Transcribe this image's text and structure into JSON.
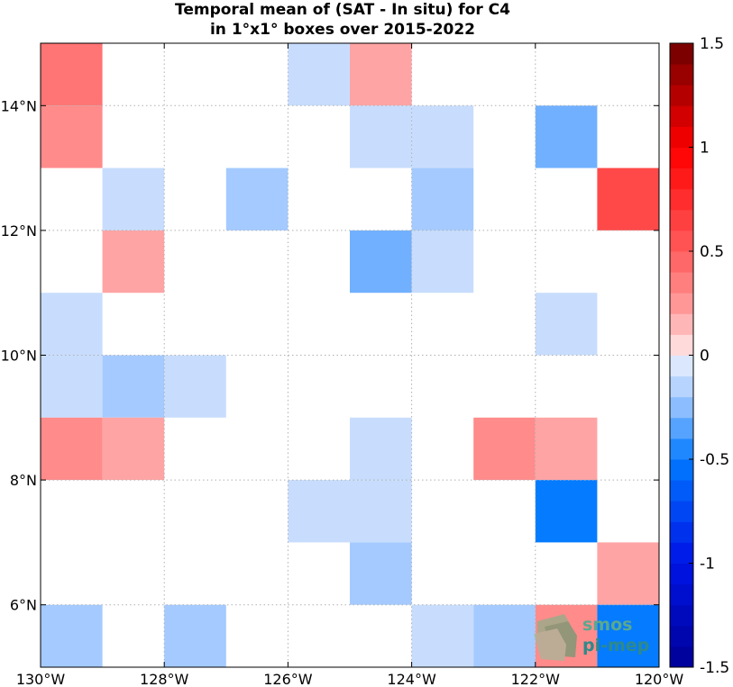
{
  "chart_data": {
    "type": "heatmap",
    "title": "Temporal mean of (SAT - In situ) for C4",
    "subtitle": "in 1°x1° boxes over 2015-2022",
    "xlim": [
      -130,
      -120
    ],
    "ylim": [
      5,
      15
    ],
    "x_ticks": [
      {
        "value": -130,
        "label": "130°W"
      },
      {
        "value": -128,
        "label": "128°W"
      },
      {
        "value": -126,
        "label": "126°W"
      },
      {
        "value": -124,
        "label": "124°W"
      },
      {
        "value": -122,
        "label": "122°W"
      },
      {
        "value": -120,
        "label": "120°W"
      }
    ],
    "y_ticks": [
      {
        "value": 6,
        "label": "6°N"
      },
      {
        "value": 8,
        "label": "8°N"
      },
      {
        "value": 10,
        "label": "10°N"
      },
      {
        "value": 12,
        "label": "12°N"
      },
      {
        "value": 14,
        "label": "14°N"
      }
    ],
    "grid": true,
    "grid_style": "dotted",
    "colorbar": {
      "range": [
        -1.5,
        1.5
      ],
      "step": 0.1,
      "ticks": [
        {
          "value": 1.5,
          "label": "1.5"
        },
        {
          "value": 1,
          "label": "1"
        },
        {
          "value": 0.5,
          "label": "0.5"
        },
        {
          "value": 0,
          "label": "0"
        },
        {
          "value": -0.5,
          "label": "-0.5"
        },
        {
          "value": -1,
          "label": "-1"
        },
        {
          "value": -1.5,
          "label": "-1.5"
        }
      ],
      "colormap": "blue-white-red"
    },
    "cells": [
      {
        "lon": -130,
        "lat": 14,
        "value": 0.4
      },
      {
        "lon": -126,
        "lat": 14,
        "value": -0.1
      },
      {
        "lon": -125,
        "lat": 14,
        "value": 0.2
      },
      {
        "lon": -130,
        "lat": 13,
        "value": 0.3
      },
      {
        "lon": -125,
        "lat": 13,
        "value": -0.1
      },
      {
        "lon": -124,
        "lat": 13,
        "value": -0.1
      },
      {
        "lon": -122,
        "lat": 13,
        "value": -0.3
      },
      {
        "lon": -129,
        "lat": 12,
        "value": -0.1
      },
      {
        "lon": -127,
        "lat": 12,
        "value": -0.2
      },
      {
        "lon": -124,
        "lat": 12,
        "value": -0.2
      },
      {
        "lon": -121,
        "lat": 12,
        "value": 0.6
      },
      {
        "lon": -129,
        "lat": 11,
        "value": 0.2
      },
      {
        "lon": -125,
        "lat": 11,
        "value": -0.3
      },
      {
        "lon": -124,
        "lat": 11,
        "value": -0.1
      },
      {
        "lon": -130,
        "lat": 10,
        "value": -0.1
      },
      {
        "lon": -122,
        "lat": 10,
        "value": -0.1
      },
      {
        "lon": -130,
        "lat": 9,
        "value": -0.1
      },
      {
        "lon": -129,
        "lat": 9,
        "value": -0.2
      },
      {
        "lon": -128,
        "lat": 9,
        "value": -0.1
      },
      {
        "lon": -130,
        "lat": 8,
        "value": 0.3
      },
      {
        "lon": -129,
        "lat": 8,
        "value": 0.2
      },
      {
        "lon": -125,
        "lat": 8,
        "value": -0.1
      },
      {
        "lon": -123,
        "lat": 8,
        "value": 0.3
      },
      {
        "lon": -122,
        "lat": 8,
        "value": 0.2
      },
      {
        "lon": -126,
        "lat": 7,
        "value": -0.1
      },
      {
        "lon": -125,
        "lat": 7,
        "value": -0.1
      },
      {
        "lon": -122,
        "lat": 7,
        "value": -0.5
      },
      {
        "lon": -125,
        "lat": 6,
        "value": -0.2
      },
      {
        "lon": -121,
        "lat": 6,
        "value": 0.2
      },
      {
        "lon": -130,
        "lat": 5,
        "value": -0.2
      },
      {
        "lon": -128,
        "lat": 5,
        "value": -0.2
      },
      {
        "lon": -124,
        "lat": 5,
        "value": -0.1
      },
      {
        "lon": -123,
        "lat": 5,
        "value": -0.2
      },
      {
        "lon": -122,
        "lat": 5,
        "value": 0.3
      },
      {
        "lon": -121,
        "lat": 5,
        "value": -0.5
      }
    ]
  },
  "logo": {
    "line1": "smos",
    "line2": "pi-mep",
    "colors": {
      "line1": "#5aa88f",
      "line2": "#2e8a8a",
      "mark": "#7aa07a"
    }
  }
}
